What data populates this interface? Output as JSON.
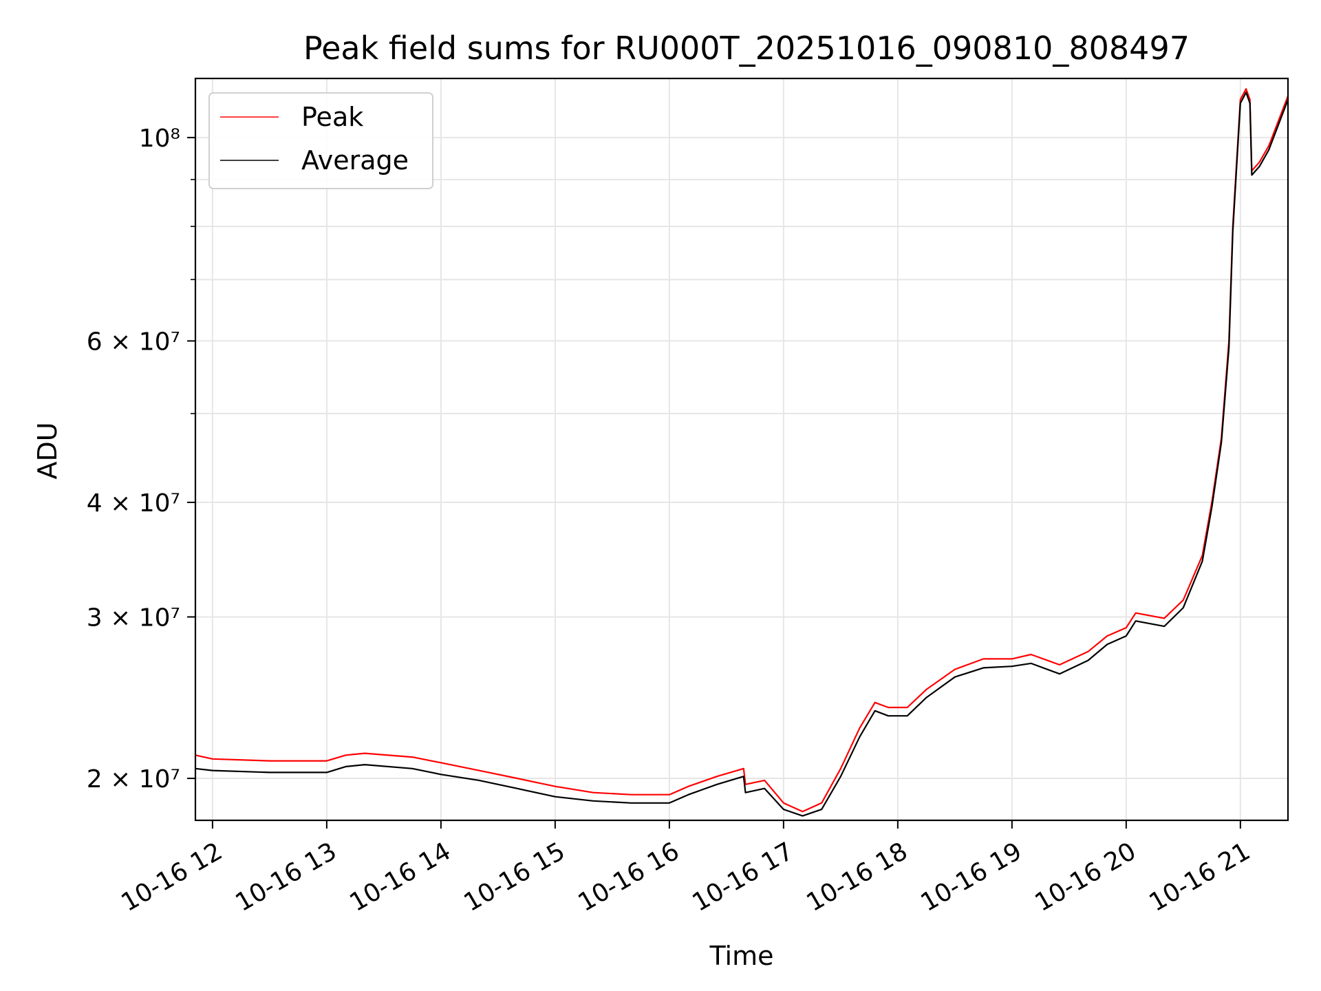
{
  "chart_data": {
    "type": "line",
    "title": "Peak field sums for RU000T_20251016_090810_808497",
    "xlabel": "Time",
    "ylabel": "ADU",
    "yscale": "log",
    "ylim": [
      18000000,
      116000000
    ],
    "xlim": [
      "2025-10-16 11:51",
      "2025-10-16 21:25"
    ],
    "grid": true,
    "legend_position": "top-left",
    "x_ticks": [
      {
        "t": "2025-10-16 12:00",
        "label": "10-16 12"
      },
      {
        "t": "2025-10-16 13:00",
        "label": "10-16 13"
      },
      {
        "t": "2025-10-16 14:00",
        "label": "10-16 14"
      },
      {
        "t": "2025-10-16 15:00",
        "label": "10-16 15"
      },
      {
        "t": "2025-10-16 16:00",
        "label": "10-16 16"
      },
      {
        "t": "2025-10-16 17:00",
        "label": "10-16 17"
      },
      {
        "t": "2025-10-16 18:00",
        "label": "10-16 18"
      },
      {
        "t": "2025-10-16 19:00",
        "label": "10-16 19"
      },
      {
        "t": "2025-10-16 20:00",
        "label": "10-16 20"
      },
      {
        "t": "2025-10-16 21:00",
        "label": "10-16 21"
      }
    ],
    "y_ticks": [
      {
        "value": 20000000,
        "label": "2 × 10⁷"
      },
      {
        "value": 30000000,
        "label": "3 × 10⁷"
      },
      {
        "value": 40000000,
        "label": "4 × 10⁷"
      },
      {
        "value": 60000000,
        "label": "6 × 10⁷"
      },
      {
        "value": 100000000,
        "label": "10⁸"
      }
    ],
    "y_minor_ticks": [
      50000000,
      70000000,
      80000000,
      90000000
    ],
    "series": [
      {
        "name": "Peak",
        "color": "#ff0000",
        "x": [
          "2025-10-16 11:51",
          "2025-10-16 12:00",
          "2025-10-16 12:30",
          "2025-10-16 13:00",
          "2025-10-16 13:10",
          "2025-10-16 13:20",
          "2025-10-16 13:45",
          "2025-10-16 14:00",
          "2025-10-16 14:20",
          "2025-10-16 14:40",
          "2025-10-16 15:00",
          "2025-10-16 15:20",
          "2025-10-16 15:40",
          "2025-10-16 16:00",
          "2025-10-16 16:10",
          "2025-10-16 16:25",
          "2025-10-16 16:39",
          "2025-10-16 16:40",
          "2025-10-16 16:50",
          "2025-10-16 17:00",
          "2025-10-16 17:10",
          "2025-10-16 17:20",
          "2025-10-16 17:30",
          "2025-10-16 17:40",
          "2025-10-16 17:48",
          "2025-10-16 17:55",
          "2025-10-16 18:05",
          "2025-10-16 18:15",
          "2025-10-16 18:30",
          "2025-10-16 18:45",
          "2025-10-16 19:00",
          "2025-10-16 19:10",
          "2025-10-16 19:25",
          "2025-10-16 19:40",
          "2025-10-16 19:50",
          "2025-10-16 20:00",
          "2025-10-16 20:05",
          "2025-10-16 20:20",
          "2025-10-16 20:30",
          "2025-10-16 20:40",
          "2025-10-16 20:45",
          "2025-10-16 20:50",
          "2025-10-16 20:54",
          "2025-10-16 20:56",
          "2025-10-16 21:00",
          "2025-10-16 21:03",
          "2025-10-16 21:05",
          "2025-10-16 21:06",
          "2025-10-16 21:10",
          "2025-10-16 21:15",
          "2025-10-16 21:25"
        ],
        "y": [
          21200000,
          21000000,
          20900000,
          20900000,
          21200000,
          21300000,
          21100000,
          20800000,
          20400000,
          20000000,
          19600000,
          19300000,
          19200000,
          19200000,
          19600000,
          20100000,
          20500000,
          19700000,
          19900000,
          18800000,
          18400000,
          18800000,
          20500000,
          22700000,
          24200000,
          23900000,
          23900000,
          25000000,
          26300000,
          27000000,
          27000000,
          27300000,
          26600000,
          27500000,
          28600000,
          29200000,
          30300000,
          29900000,
          31300000,
          35000000,
          40000000,
          47000000,
          60000000,
          80000000,
          110000000,
          113000000,
          110000000,
          92000000,
          94000000,
          98000000,
          111000000
        ]
      },
      {
        "name": "Average",
        "color": "#000000",
        "x": [
          "2025-10-16 11:51",
          "2025-10-16 12:00",
          "2025-10-16 12:30",
          "2025-10-16 13:00",
          "2025-10-16 13:10",
          "2025-10-16 13:20",
          "2025-10-16 13:45",
          "2025-10-16 14:00",
          "2025-10-16 14:20",
          "2025-10-16 14:40",
          "2025-10-16 15:00",
          "2025-10-16 15:20",
          "2025-10-16 15:40",
          "2025-10-16 16:00",
          "2025-10-16 16:10",
          "2025-10-16 16:25",
          "2025-10-16 16:39",
          "2025-10-16 16:40",
          "2025-10-16 16:50",
          "2025-10-16 17:00",
          "2025-10-16 17:10",
          "2025-10-16 17:20",
          "2025-10-16 17:30",
          "2025-10-16 17:40",
          "2025-10-16 17:48",
          "2025-10-16 17:55",
          "2025-10-16 18:05",
          "2025-10-16 18:15",
          "2025-10-16 18:30",
          "2025-10-16 18:45",
          "2025-10-16 19:00",
          "2025-10-16 19:10",
          "2025-10-16 19:25",
          "2025-10-16 19:40",
          "2025-10-16 19:50",
          "2025-10-16 20:00",
          "2025-10-16 20:05",
          "2025-10-16 20:20",
          "2025-10-16 20:30",
          "2025-10-16 20:40",
          "2025-10-16 20:45",
          "2025-10-16 20:50",
          "2025-10-16 20:54",
          "2025-10-16 20:56",
          "2025-10-16 21:00",
          "2025-10-16 21:03",
          "2025-10-16 21:05",
          "2025-10-16 21:06",
          "2025-10-16 21:10",
          "2025-10-16 21:15",
          "2025-10-16 21:25"
        ],
        "y": [
          20500000,
          20400000,
          20300000,
          20300000,
          20600000,
          20700000,
          20500000,
          20200000,
          19900000,
          19500000,
          19100000,
          18900000,
          18800000,
          18800000,
          19200000,
          19700000,
          20100000,
          19300000,
          19500000,
          18500000,
          18200000,
          18500000,
          20100000,
          22200000,
          23700000,
          23400000,
          23400000,
          24500000,
          25800000,
          26400000,
          26500000,
          26700000,
          26000000,
          26900000,
          28000000,
          28600000,
          29700000,
          29300000,
          30700000,
          34500000,
          39500000,
          46500000,
          59000000,
          79000000,
          109000000,
          112000000,
          109000000,
          91000000,
          93000000,
          97000000,
          110000000
        ]
      }
    ]
  }
}
